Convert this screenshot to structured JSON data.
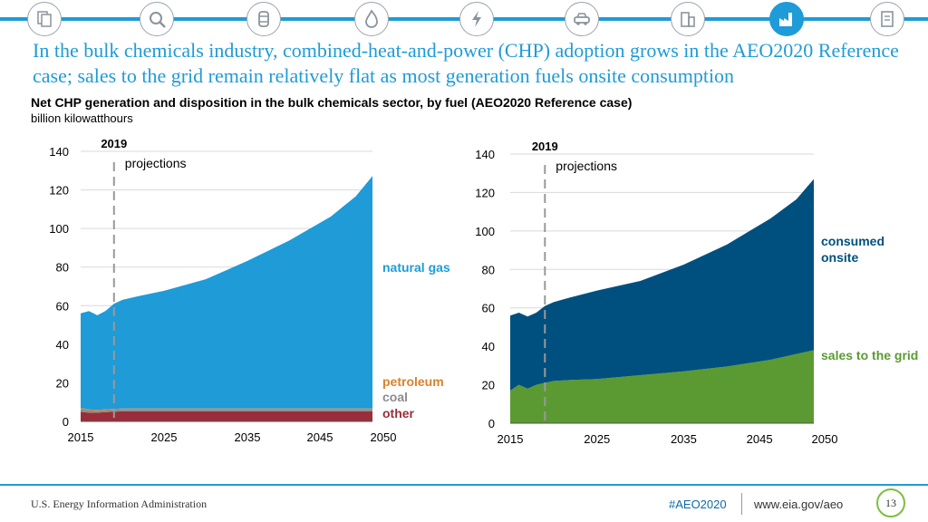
{
  "nav": {
    "icons": [
      "documents-icon",
      "magnifier-icon",
      "barrel-icon",
      "flame-icon",
      "lightning-icon",
      "car-icon",
      "building-icon",
      "factory-icon",
      "report-icon"
    ],
    "active_index": 7,
    "accent": "#1f9bd7"
  },
  "headline": "In the bulk chemicals industry, combined-heat-and-power (CHP) adoption grows in the AEO2020 Reference case; sales to the grid remain relatively flat as most generation fuels onsite consumption",
  "chart_title": "Net CHP generation and disposition in the bulk chemicals sector, by fuel (AEO2020 Reference case)",
  "chart_units": "billion kilowatthours",
  "chart_data": [
    {
      "type": "area",
      "x": [
        2015,
        2016,
        2017,
        2018,
        2019,
        2020,
        2022,
        2025,
        2030,
        2035,
        2040,
        2045,
        2048,
        2050
      ],
      "series": [
        {
          "name": "other",
          "color": "#9b2d3a",
          "values": [
            5,
            4.5,
            4.5,
            4.8,
            5,
            5.2,
            5.2,
            5.2,
            5.2,
            5.2,
            5.2,
            5.2,
            5.2,
            5.2
          ]
        },
        {
          "name": "coal",
          "color": "#8c8c8c",
          "values": [
            1.5,
            1.2,
            1,
            1,
            1,
            1,
            1,
            1,
            1,
            1,
            1,
            1,
            1,
            1
          ]
        },
        {
          "name": "petroleum",
          "color": "#d9822b",
          "values": [
            0.5,
            0.5,
            0.5,
            0.5,
            0.5,
            0.5,
            0.5,
            0.5,
            0.5,
            0.5,
            0.5,
            0.5,
            0.5,
            0.5
          ]
        },
        {
          "name": "natural gas",
          "color": "#1f9bd7",
          "values": [
            49,
            51,
            49,
            51,
            54.5,
            56.3,
            58.3,
            61,
            67,
            76.5,
            87,
            99.5,
            110,
            120.5
          ]
        }
      ],
      "xticks": [
        2015,
        2025,
        2035,
        2045,
        2050
      ],
      "yticks": [
        0,
        20,
        40,
        60,
        80,
        100,
        120,
        140
      ],
      "ylim": [
        0,
        140
      ],
      "xlim": [
        2015,
        2050
      ],
      "grid": true,
      "annotation": {
        "year": 2019,
        "label_year": "2019",
        "label": "projections"
      }
    },
    {
      "type": "area",
      "x": [
        2015,
        2016,
        2017,
        2018,
        2019,
        2020,
        2022,
        2025,
        2030,
        2035,
        2040,
        2045,
        2048,
        2050
      ],
      "series": [
        {
          "name": "sales to the grid",
          "color": "#5b9a32",
          "values": [
            17,
            20,
            18,
            20,
            21,
            22,
            22.5,
            23,
            25,
            27,
            29.5,
            33,
            36,
            38
          ]
        },
        {
          "name": "consumed onsite",
          "color": "#00507f",
          "values": [
            39,
            37.5,
            37.5,
            37.5,
            40,
            41,
            43,
            46,
            49,
            55.5,
            63.5,
            73.5,
            80.5,
            89
          ]
        }
      ],
      "xticks": [
        2015,
        2025,
        2035,
        2045,
        2050
      ],
      "yticks": [
        0,
        20,
        40,
        60,
        80,
        100,
        120,
        140
      ],
      "ylim": [
        0,
        140
      ],
      "xlim": [
        2015,
        2050
      ],
      "grid": true,
      "annotation": {
        "year": 2019,
        "label_year": "2019",
        "label": "projections"
      }
    }
  ],
  "legend_left": [
    {
      "text": "natural gas",
      "color": "#1f9bd7"
    },
    {
      "text": "petroleum",
      "color": "#d9822b"
    },
    {
      "text": "coal",
      "color": "#8c8c8c"
    },
    {
      "text": "other",
      "color": "#9b2d3a"
    }
  ],
  "legend_right": [
    {
      "text": "consumed",
      "color": "#00507f"
    },
    {
      "text": "onsite",
      "color": "#00507f"
    },
    {
      "text": "sales to the grid",
      "color": "#5b9a32"
    }
  ],
  "footer": {
    "source": "U.S. Energy Information Administration",
    "hashtag": "#AEO2020",
    "url": "www.eia.gov/aeo",
    "page": "13"
  }
}
